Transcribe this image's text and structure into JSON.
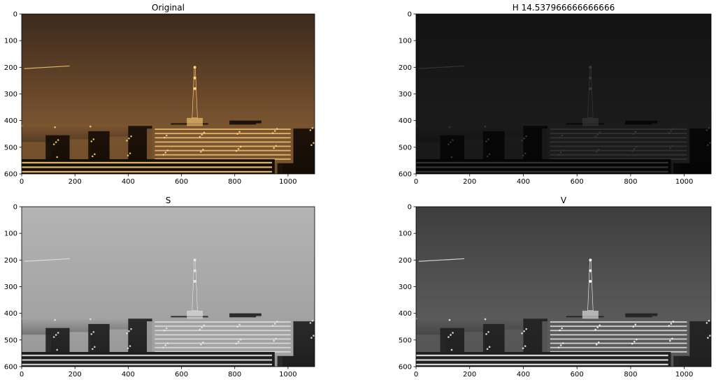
{
  "chart_data": [
    {
      "type": "image",
      "title": "Original",
      "xlim": [
        0,
        1100
      ],
      "ylim": [
        600,
        0
      ],
      "xticks": [
        "0",
        "200",
        "400",
        "600",
        "800",
        "1000"
      ],
      "yticks": [
        "0",
        "100",
        "200",
        "300",
        "400",
        "500",
        "600"
      ],
      "colormap": "rgb",
      "palette": {
        "sky": "#3c2a1c",
        "glow": "#7a5430",
        "light": "#ffd27a",
        "dark": "#140c06"
      }
    },
    {
      "type": "image",
      "title": "H 14.537966666666666",
      "xlim": [
        0,
        1100
      ],
      "ylim": [
        600,
        0
      ],
      "xticks": [
        "0",
        "200",
        "400",
        "600",
        "800",
        "1000"
      ],
      "yticks": [
        "0",
        "100",
        "200",
        "300",
        "400",
        "500",
        "600"
      ],
      "colormap": "gray",
      "palette": {
        "sky": "#131313",
        "glow": "#1b1b1b",
        "light": "#3a3a3a",
        "dark": "#050505"
      }
    },
    {
      "type": "image",
      "title": "S",
      "xlim": [
        0,
        1100
      ],
      "ylim": [
        600,
        0
      ],
      "xticks": [
        "0",
        "200",
        "400",
        "600",
        "800",
        "1000"
      ],
      "yticks": [
        "0",
        "100",
        "200",
        "300",
        "400",
        "500",
        "600"
      ],
      "colormap": "gray",
      "palette": {
        "sky": "#b4b4b4",
        "glow": "#a2a2a2",
        "light": "#e6e6e6",
        "dark": "#1e1e1e"
      }
    },
    {
      "type": "image",
      "title": "V",
      "xlim": [
        0,
        1100
      ],
      "ylim": [
        600,
        0
      ],
      "xticks": [
        "0",
        "200",
        "400",
        "600",
        "800",
        "1000"
      ],
      "yticks": [
        "0",
        "100",
        "200",
        "300",
        "400",
        "500",
        "600"
      ],
      "colormap": "gray",
      "palette": {
        "sky": "#3e3e3e",
        "glow": "#5a5a5a",
        "light": "#f4f4f4",
        "dark": "#202020"
      }
    }
  ]
}
